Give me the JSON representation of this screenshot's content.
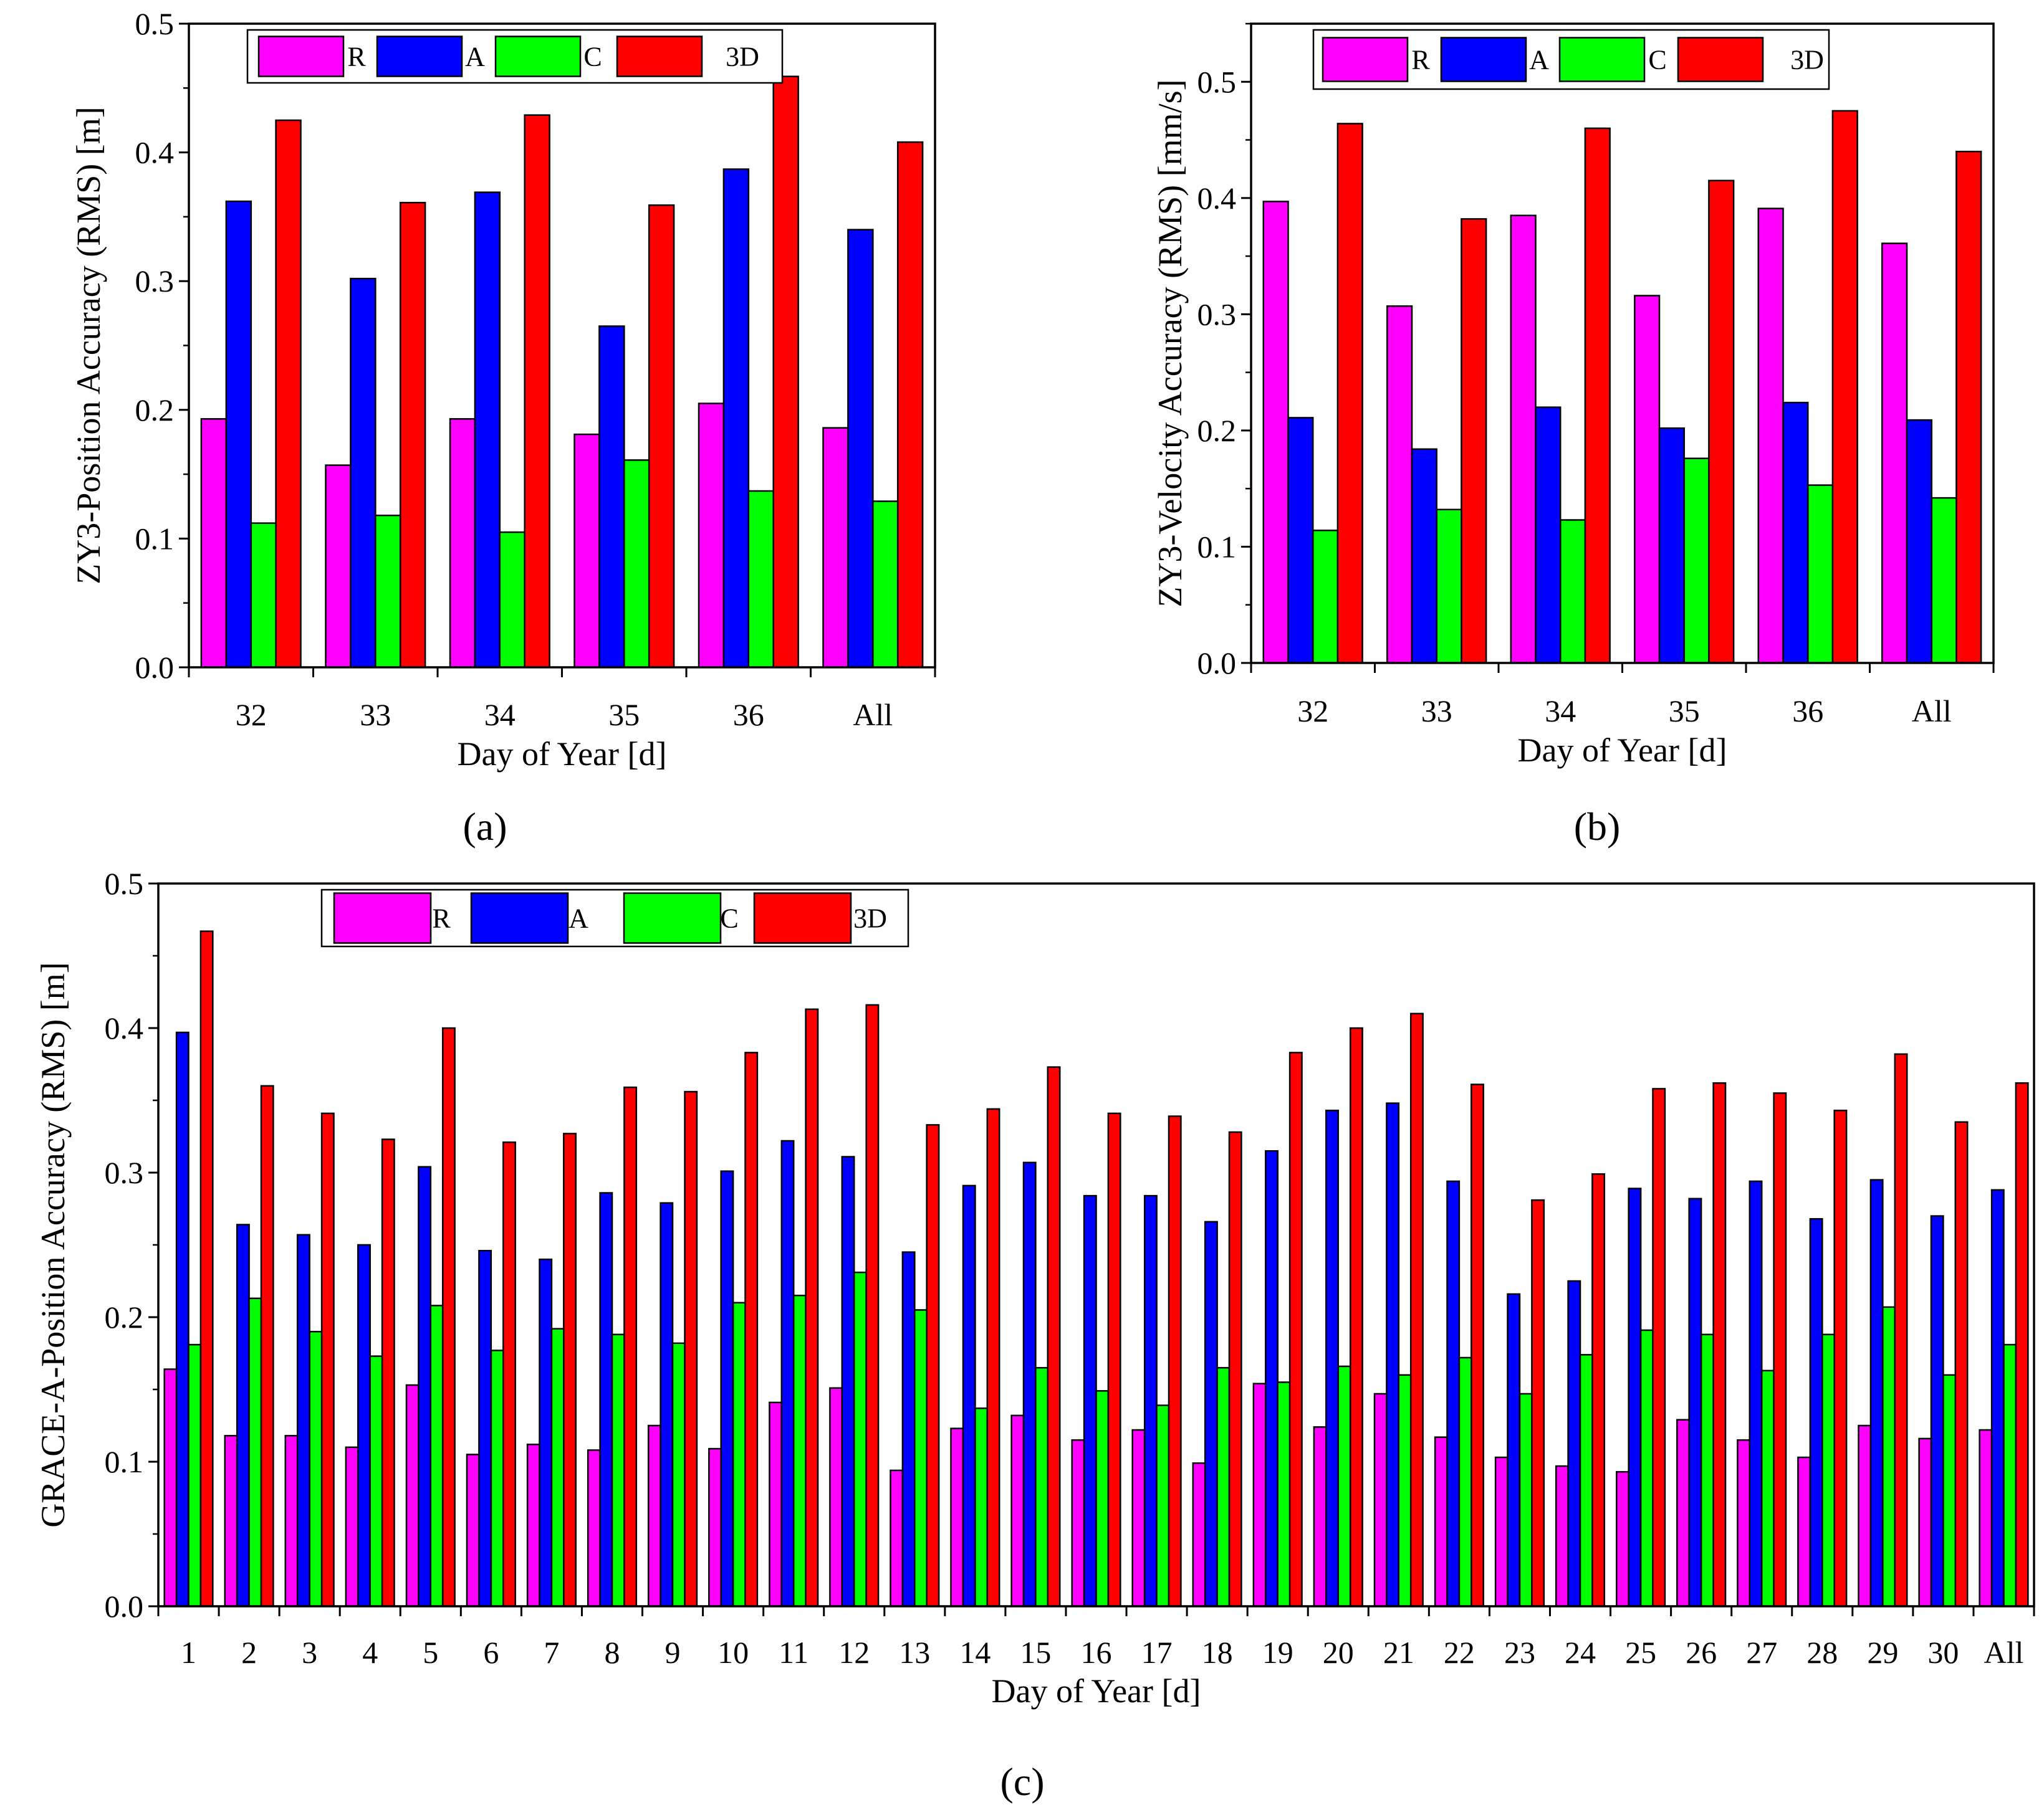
{
  "legend": {
    "labels": [
      "R",
      "A",
      "C",
      "3D"
    ]
  },
  "series_colors": [
    "#ff00ff",
    "#0000ff",
    "#00ff00",
    "#ff0000"
  ],
  "panel_labels": [
    "(a)",
    "(b)",
    "(c)"
  ],
  "chart_data": [
    {
      "type": "bar",
      "panel": "(a)",
      "xlabel": "Day of Year [d]",
      "ylabel": "ZY3-Position Accuracy (RMS) [m]",
      "ylim": [
        0,
        0.5
      ],
      "yticks": [
        "0.0",
        "0.1",
        "0.2",
        "0.3",
        "0.4",
        "0.5"
      ],
      "categories": [
        "32",
        "33",
        "34",
        "35",
        "36",
        "All"
      ],
      "legend_position": "top-left",
      "series": [
        {
          "name": "R",
          "values": [
            0.193,
            0.157,
            0.193,
            0.181,
            0.205,
            0.186
          ]
        },
        {
          "name": "A",
          "values": [
            0.362,
            0.302,
            0.369,
            0.265,
            0.387,
            0.34
          ]
        },
        {
          "name": "C",
          "values": [
            0.112,
            0.118,
            0.105,
            0.161,
            0.137,
            0.129
          ]
        },
        {
          "name": "3D",
          "values": [
            0.425,
            0.361,
            0.429,
            0.359,
            0.459,
            0.408
          ]
        }
      ]
    },
    {
      "type": "bar",
      "panel": "(b)",
      "xlabel": "Day of Year [d]",
      "ylabel": "ZY3-Velocity Accuracy (RMS) [mm/s]",
      "ylim": [
        0,
        0.55
      ],
      "yticks": [
        "0.0",
        "0.1",
        "0.2",
        "0.3",
        "0.4",
        "0.5"
      ],
      "categories": [
        "32",
        "33",
        "34",
        "35",
        "36",
        "All"
      ],
      "legend_position": "top-center",
      "series": [
        {
          "name": "R",
          "values": [
            0.397,
            0.307,
            0.385,
            0.316,
            0.391,
            0.361
          ]
        },
        {
          "name": "A",
          "values": [
            0.211,
            0.184,
            0.22,
            0.202,
            0.224,
            0.209
          ]
        },
        {
          "name": "C",
          "values": [
            0.114,
            0.132,
            0.123,
            0.176,
            0.153,
            0.142
          ]
        },
        {
          "name": "3D",
          "values": [
            0.464,
            0.382,
            0.46,
            0.415,
            0.475,
            0.44
          ]
        }
      ]
    },
    {
      "type": "bar",
      "panel": "(c)",
      "xlabel": "Day of Year [d]",
      "ylabel": "GRACE-A-Position Accuracy (RMS) [m]",
      "ylim": [
        0,
        0.5
      ],
      "yticks": [
        "0.0",
        "0.1",
        "0.2",
        "0.3",
        "0.4",
        "0.5"
      ],
      "categories": [
        "1",
        "2",
        "3",
        "4",
        "5",
        "6",
        "7",
        "8",
        "9",
        "10",
        "11",
        "12",
        "13",
        "14",
        "15",
        "16",
        "17",
        "18",
        "19",
        "20",
        "21",
        "22",
        "23",
        "24",
        "25",
        "26",
        "27",
        "28",
        "29",
        "30",
        "All"
      ],
      "legend_position": "top-left",
      "series": [
        {
          "name": "R",
          "values": [
            0.164,
            0.118,
            0.118,
            0.11,
            0.153,
            0.105,
            0.112,
            0.108,
            0.125,
            0.109,
            0.141,
            0.151,
            0.094,
            0.123,
            0.132,
            0.115,
            0.122,
            0.099,
            0.154,
            0.124,
            0.147,
            0.117,
            0.103,
            0.097,
            0.093,
            0.129,
            0.115,
            0.103,
            0.125,
            0.116,
            0.122
          ]
        },
        {
          "name": "A",
          "values": [
            0.397,
            0.264,
            0.257,
            0.25,
            0.304,
            0.246,
            0.24,
            0.286,
            0.279,
            0.301,
            0.322,
            0.311,
            0.245,
            0.291,
            0.307,
            0.284,
            0.284,
            0.266,
            0.315,
            0.343,
            0.348,
            0.294,
            0.216,
            0.225,
            0.289,
            0.282,
            0.294,
            0.268,
            0.295,
            0.27,
            0.288
          ]
        },
        {
          "name": "C",
          "values": [
            0.181,
            0.213,
            0.19,
            0.173,
            0.208,
            0.177,
            0.192,
            0.188,
            0.182,
            0.21,
            0.215,
            0.231,
            0.205,
            0.137,
            0.165,
            0.149,
            0.139,
            0.165,
            0.155,
            0.166,
            0.16,
            0.172,
            0.147,
            0.174,
            0.191,
            0.188,
            0.163,
            0.188,
            0.207,
            0.16,
            0.181
          ]
        },
        {
          "name": "3D",
          "values": [
            0.467,
            0.36,
            0.341,
            0.323,
            0.4,
            0.321,
            0.327,
            0.359,
            0.356,
            0.383,
            0.413,
            0.416,
            0.333,
            0.344,
            0.373,
            0.341,
            0.339,
            0.328,
            0.383,
            0.4,
            0.41,
            0.361,
            0.281,
            0.299,
            0.358,
            0.362,
            0.355,
            0.343,
            0.382,
            0.335,
            0.362
          ]
        }
      ]
    }
  ]
}
